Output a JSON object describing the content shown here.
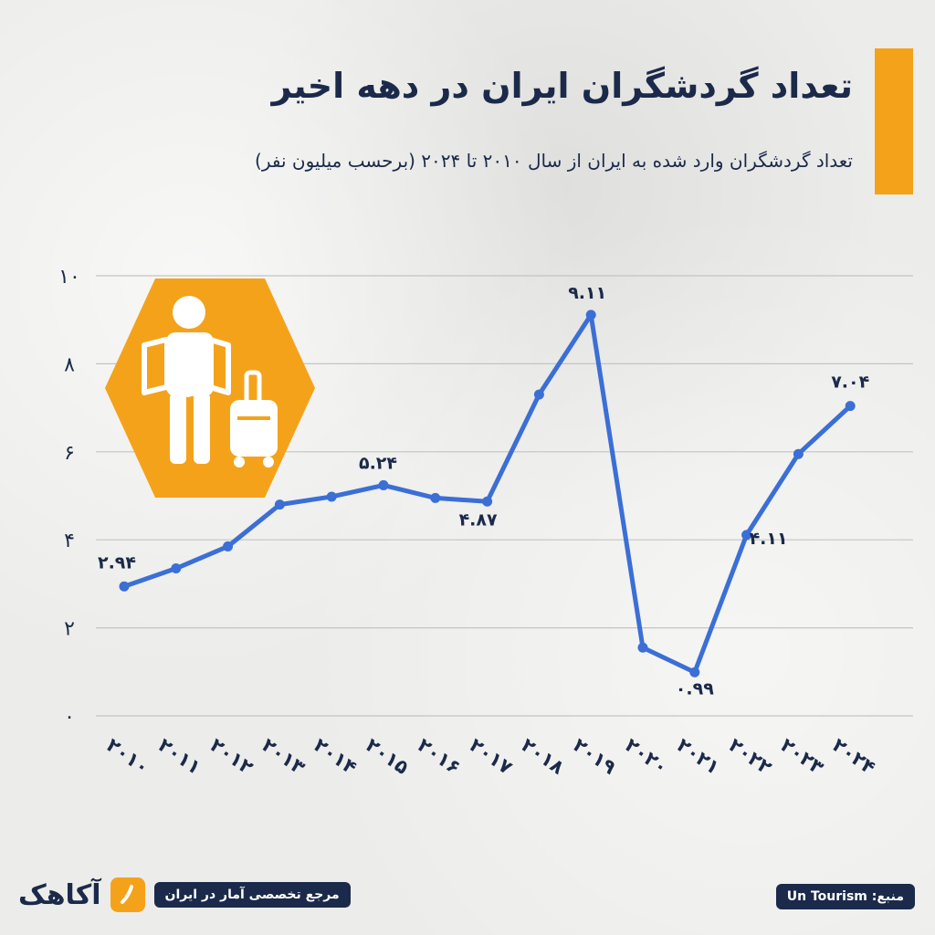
{
  "header": {
    "title": "تعداد گردشگران ایران در دهه اخیر",
    "subtitle": "تعداد گردشگران وارد شده به ایران از سال ۲۰۱۰ تا ۲۰۲۴ (برحسب میلیون نفر)"
  },
  "footer": {
    "brand_name": "آکاهک",
    "brand_tagline": "مرجع تخصصی آمار در ایران",
    "source": "منبع: Un Tourism"
  },
  "colors": {
    "accent": "#f5a21b",
    "line": "#3b6fd6",
    "navy": "#1b2a4a",
    "grid": "#c4c4c2"
  },
  "icons": {
    "badge": "tourist-with-map-and-suitcase-icon",
    "logo": "brand-logo-icon"
  },
  "chart_data": {
    "type": "line",
    "title": "تعداد گردشگران ایران در دهه اخیر",
    "subtitle": "تعداد گردشگران وارد شده به ایران از سال ۲۰۱۰ تا ۲۰۲۴ (برحسب میلیون نفر)",
    "categories": [
      "۲۰۱۰",
      "۲۰۱۱",
      "۲۰۱۲",
      "۲۰۱۳",
      "۲۰۱۴",
      "۲۰۱۵",
      "۲۰۱۶",
      "۲۰۱۷",
      "۲۰۱۸",
      "۲۰۱۹",
      "۲۰۲۰",
      "۲۰۲۱",
      "۲۰۲۲",
      "۲۰۲۳",
      "۲۰۲۴"
    ],
    "values": [
      2.94,
      3.35,
      3.85,
      4.8,
      4.98,
      5.24,
      4.95,
      4.87,
      7.3,
      9.11,
      1.55,
      0.99,
      4.11,
      5.95,
      7.04
    ],
    "data_labels": {
      "0": "۲.۹۴",
      "5": "۵.۲۴",
      "7": "۴.۸۷",
      "9": "۹.۱۱",
      "11": "۰.۹۹",
      "12": "۴.۱۱",
      "14": "۷.۰۴"
    },
    "yticks": [
      "۰",
      "۲",
      "۴",
      "۶",
      "۸",
      "۱۰"
    ],
    "ylim": [
      0,
      10
    ],
    "grid": true,
    "legend": "none"
  }
}
